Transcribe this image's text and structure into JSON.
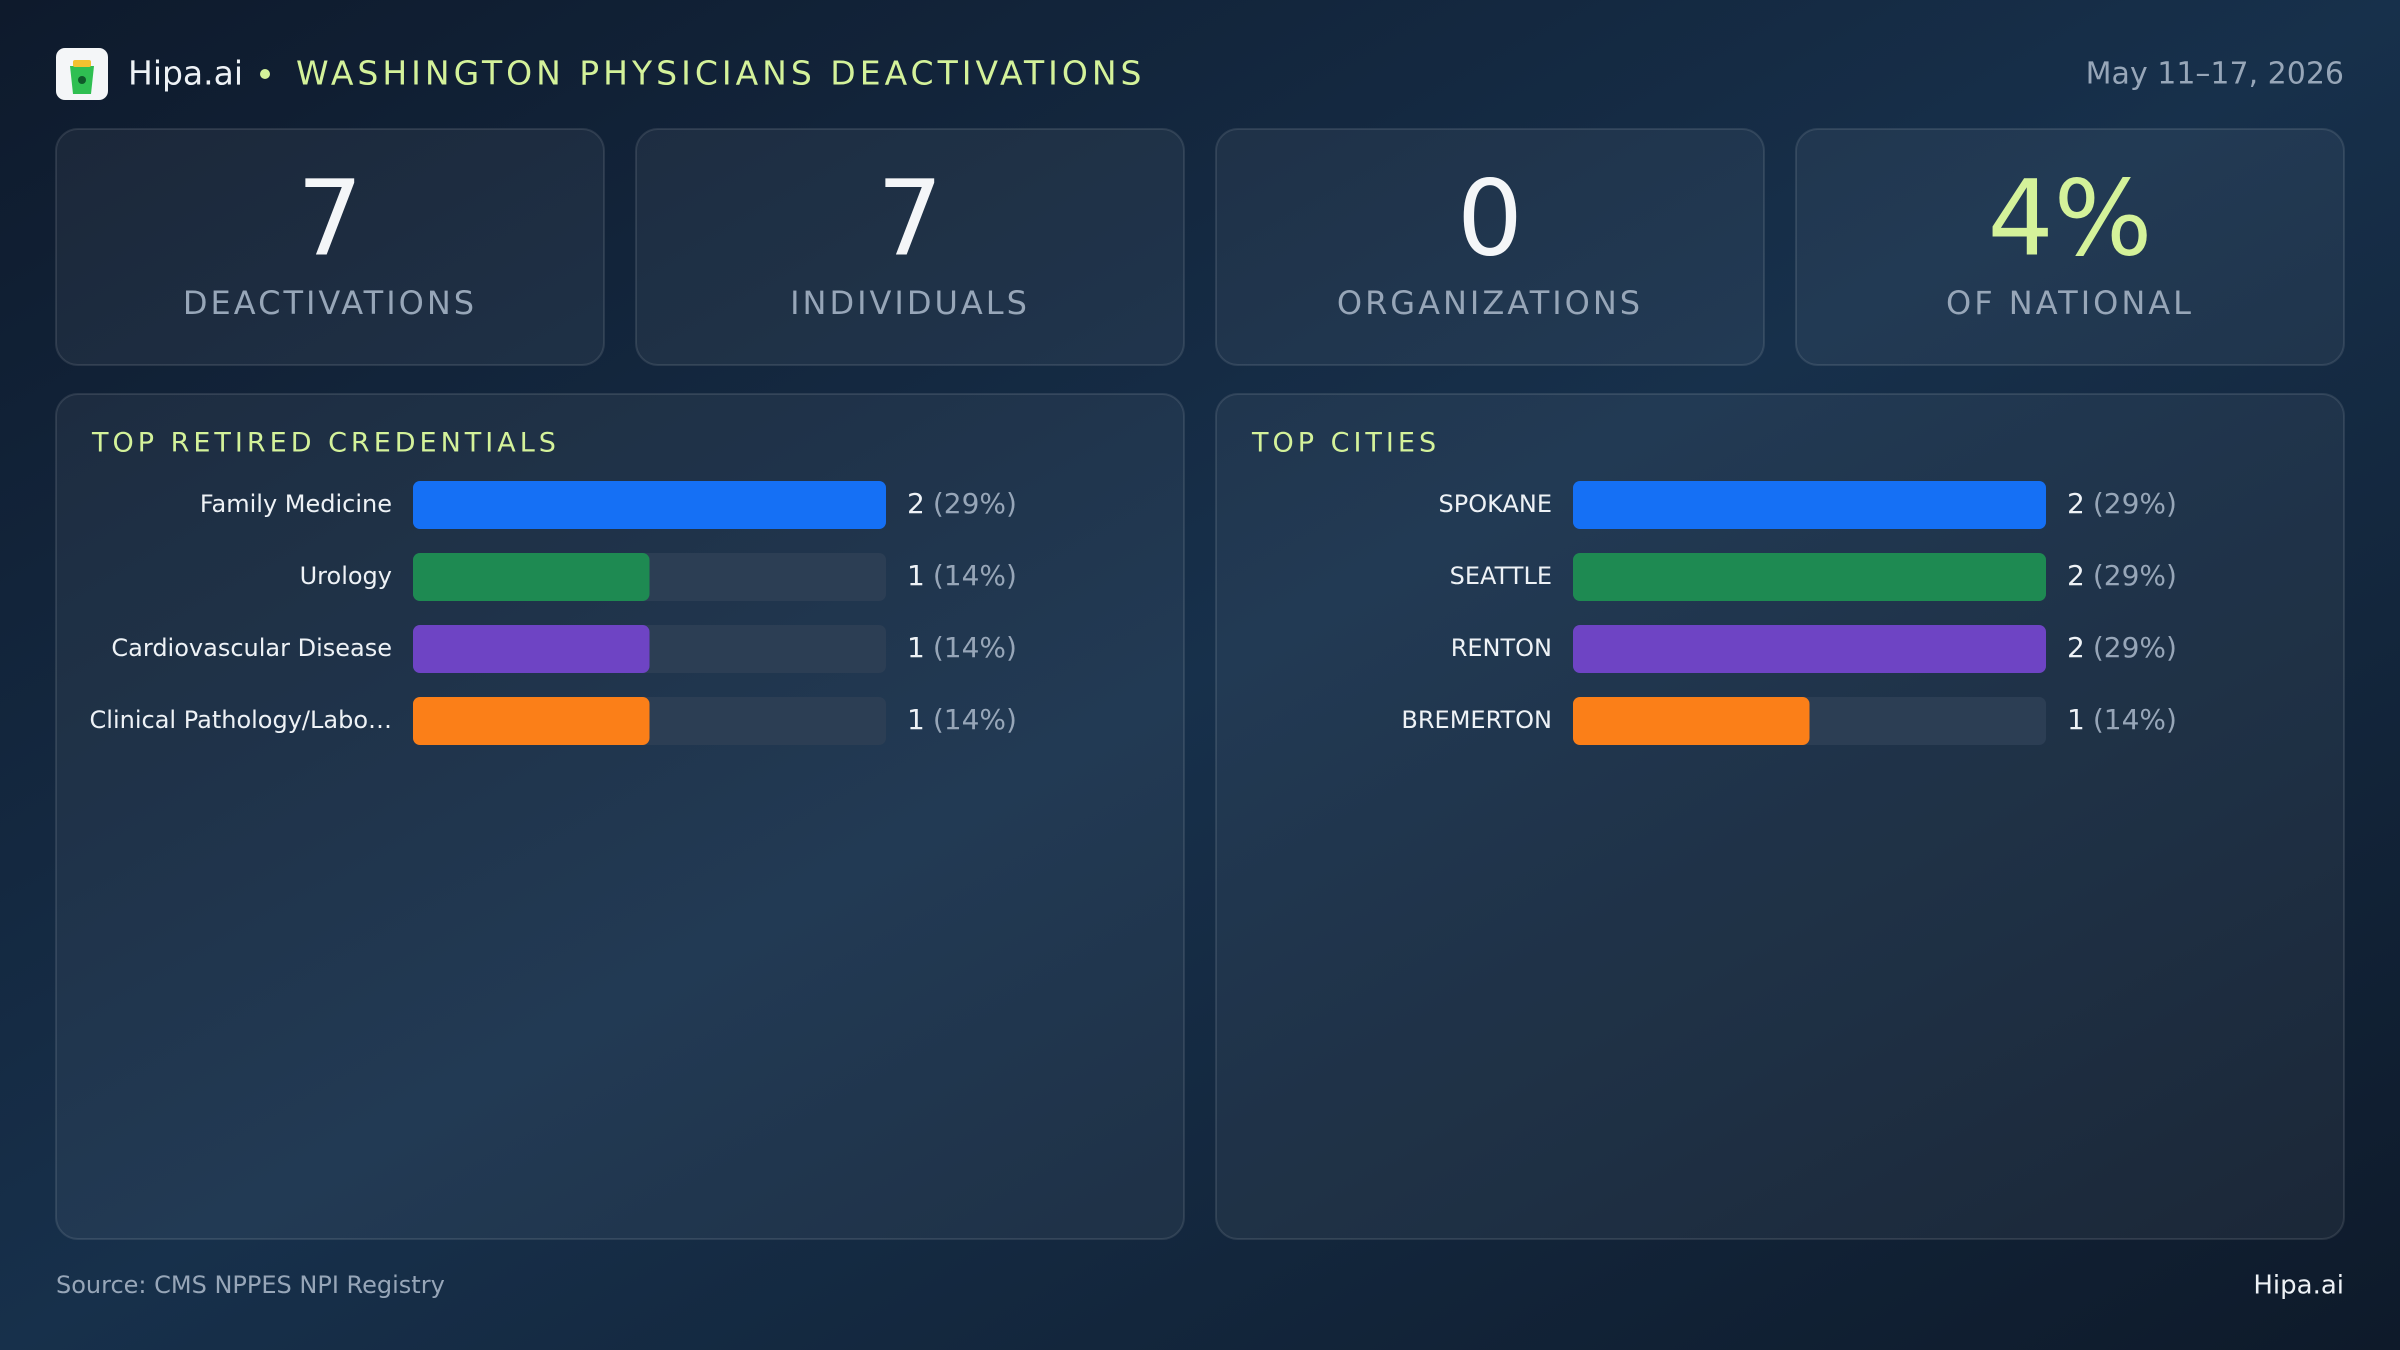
{
  "header": {
    "brand": "Hipa.ai",
    "title": "WASHINGTON PHYSICIANS DEACTIVATIONS",
    "date": "May 11–17, 2026"
  },
  "stats": [
    {
      "value": 7,
      "label": "DEACTIVATIONS"
    },
    {
      "value": 7,
      "label": "INDIVIDUALS"
    },
    {
      "value": 0,
      "label": "ORGANIZATIONS"
    },
    {
      "value": 4,
      "value_label": "4%",
      "label": "OF NATIONAL"
    }
  ],
  "chart_data": [
    {
      "type": "bar",
      "orientation": "horizontal",
      "title": "TOP RETIRED CREDENTIALS",
      "categories": [
        "Family Medicine",
        "Urology",
        "Cardiovascular Disease",
        "Clinical Pathology/Labo…"
      ],
      "values": [
        2,
        1,
        1,
        1
      ],
      "share_labels": [
        "(29%)",
        "(14%)",
        "(14%)",
        "(14%)"
      ],
      "colors": [
        "#1570f5",
        "#1e8a52",
        "#6e44c4",
        "#fb7f18"
      ],
      "xlim": [
        0,
        2
      ]
    },
    {
      "type": "bar",
      "orientation": "horizontal",
      "title": "TOP CITIES",
      "categories": [
        "SPOKANE",
        "SEATTLE",
        "RENTON",
        "BREMERTON"
      ],
      "values": [
        2,
        2,
        2,
        1
      ],
      "share_labels": [
        "(29%)",
        "(29%)",
        "(29%)",
        "(14%)"
      ],
      "colors": [
        "#1570f5",
        "#1e8a52",
        "#6e44c4",
        "#fb7f18"
      ],
      "xlim": [
        0,
        2
      ]
    }
  ],
  "footer": {
    "source": "Source: CMS NPPES NPI Registry",
    "brand": "Hipa.ai"
  }
}
